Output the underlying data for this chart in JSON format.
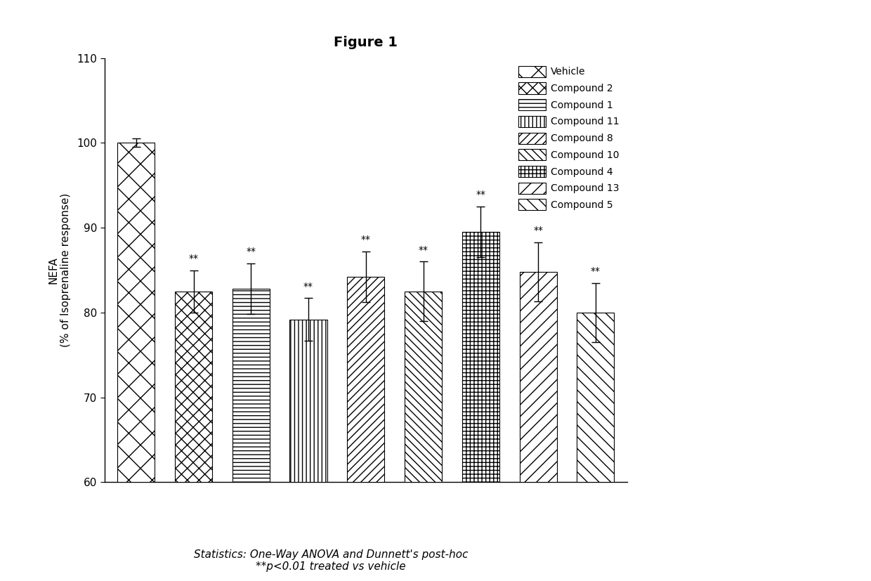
{
  "title": "Figure 1",
  "ylabel": "NEFA\n(% of Isoprenaline response)",
  "ylim": [
    60,
    110
  ],
  "yticks": [
    60,
    70,
    80,
    90,
    100,
    110
  ],
  "bars": [
    {
      "label": "Vehicle",
      "value": 100.0,
      "err": 0.5,
      "sig": false
    },
    {
      "label": "Compound 2",
      "value": 82.5,
      "err": 2.5,
      "sig": true
    },
    {
      "label": "Compound 1",
      "value": 82.8,
      "err": 3.0,
      "sig": true
    },
    {
      "label": "Compound 11",
      "value": 79.2,
      "err": 2.5,
      "sig": true
    },
    {
      "label": "Compound 8",
      "value": 84.2,
      "err": 3.0,
      "sig": true
    },
    {
      "label": "Compound 10",
      "value": 82.5,
      "err": 3.5,
      "sig": true
    },
    {
      "label": "Compound 4",
      "value": 89.5,
      "err": 3.0,
      "sig": true
    },
    {
      "label": "Compound 13",
      "value": 84.8,
      "err": 3.5,
      "sig": true
    },
    {
      "label": "Compound 5",
      "value": 80.0,
      "err": 3.5,
      "sig": true
    }
  ],
  "bar_color": "#ffffff",
  "bar_edgecolor": "#000000",
  "annotation_line1": "Statistics: One-Way ANOVA and Dunnett's post-hoc",
  "annotation_line2": "**p<0.01 treated vs vehicle",
  "sig_label": "**",
  "legend_labels": [
    "Vehicle",
    "Compound 2",
    "Compound 1",
    "Compound 11",
    "Compound 8",
    "Compound 10",
    "Compound 4",
    "Compound 13",
    "Compound 5"
  ]
}
